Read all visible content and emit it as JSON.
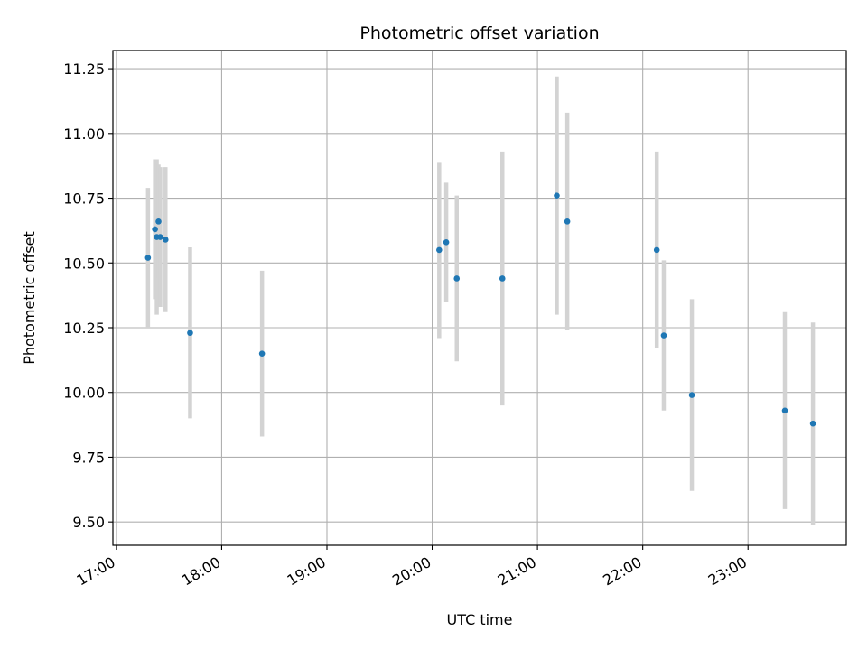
{
  "chart_data": {
    "type": "scatter",
    "title": "Photometric offset variation",
    "xlabel": "UTC time",
    "ylabel": "Photometric offset",
    "xlim": [
      "16:58",
      "23:56"
    ],
    "ylim": [
      9.41,
      11.32
    ],
    "x_ticks": [
      "17:00",
      "18:00",
      "19:00",
      "20:00",
      "21:00",
      "22:00",
      "23:00"
    ],
    "y_ticks": [
      "9.50",
      "9.75",
      "10.00",
      "10.25",
      "10.50",
      "10.75",
      "11.00",
      "11.25"
    ],
    "grid": true,
    "series": [
      {
        "marker_color": "#1f77b4",
        "errorbar_color": "#d3d3d3",
        "points": [
          {
            "time": "17:18",
            "y": 10.52,
            "err": 0.27
          },
          {
            "time": "17:22",
            "y": 10.63,
            "err": 0.27
          },
          {
            "time": "17:23",
            "y": 10.6,
            "err": 0.3
          },
          {
            "time": "17:24",
            "y": 10.66,
            "err": 0.22
          },
          {
            "time": "17:25",
            "y": 10.6,
            "err": 0.27
          },
          {
            "time": "17:28",
            "y": 10.59,
            "err": 0.28
          },
          {
            "time": "17:42",
            "y": 10.23,
            "err": 0.33
          },
          {
            "time": "18:23",
            "y": 10.15,
            "err": 0.32
          },
          {
            "time": "20:04",
            "y": 10.55,
            "err": 0.34
          },
          {
            "time": "20:08",
            "y": 10.58,
            "err": 0.23
          },
          {
            "time": "20:14",
            "y": 10.44,
            "err": 0.32
          },
          {
            "time": "20:40",
            "y": 10.44,
            "err": 0.49
          },
          {
            "time": "21:11",
            "y": 10.76,
            "err": 0.46
          },
          {
            "time": "21:17",
            "y": 10.66,
            "err": 0.42
          },
          {
            "time": "22:08",
            "y": 10.55,
            "err": 0.38
          },
          {
            "time": "22:12",
            "y": 10.22,
            "err": 0.29
          },
          {
            "time": "22:28",
            "y": 9.99,
            "err": 0.37
          },
          {
            "time": "23:21",
            "y": 9.93,
            "err": 0.38
          },
          {
            "time": "23:37",
            "y": 9.88,
            "err": 0.39
          }
        ]
      }
    ]
  }
}
